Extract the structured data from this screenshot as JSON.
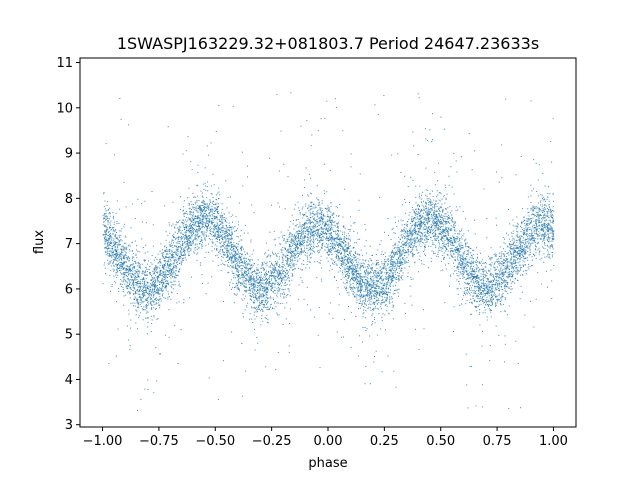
{
  "chart_data": {
    "type": "scatter",
    "title": "1SWASPJ163229.32+081803.7 Period 24647.23633s",
    "xlabel": "phase",
    "ylabel": "flux",
    "xlim": [
      -1.1,
      1.1
    ],
    "ylim": [
      2.95,
      11.1
    ],
    "x_ticks": [
      -1.0,
      -0.75,
      -0.5,
      -0.25,
      0.0,
      0.25,
      0.5,
      0.75,
      1.0
    ],
    "x_tick_labels": [
      "−1.00",
      "−0.75",
      "−0.50",
      "−0.25",
      "0.00",
      "0.25",
      "0.50",
      "0.75",
      "1.00"
    ],
    "y_ticks": [
      3,
      4,
      5,
      6,
      7,
      8,
      9,
      10,
      11
    ],
    "y_tick_labels": [
      "3",
      "4",
      "5",
      "6",
      "7",
      "8",
      "9",
      "10",
      "11"
    ],
    "grid": false,
    "legend": "none",
    "marker_color": "#1f77b4",
    "series": [
      {
        "phase_range": [
          -1.0,
          1.0
        ],
        "description_points_x": [
          -1.0,
          -0.92,
          -0.85,
          -0.75,
          -0.65,
          -0.55,
          -0.45,
          -0.35,
          -0.25,
          -0.15,
          -0.05,
          0.0,
          0.08,
          0.15,
          0.25,
          0.35,
          0.45,
          0.55,
          0.65,
          0.75,
          0.85,
          0.92,
          1.0
        ],
        "approx_mean_flux": [
          7.3,
          7.0,
          6.5,
          6.0,
          6.9,
          7.5,
          7.3,
          6.5,
          5.9,
          6.7,
          7.3,
          7.3,
          7.0,
          6.5,
          6.0,
          6.9,
          7.5,
          7.3,
          6.5,
          5.9,
          6.7,
          7.2,
          7.3
        ]
      }
    ]
  }
}
